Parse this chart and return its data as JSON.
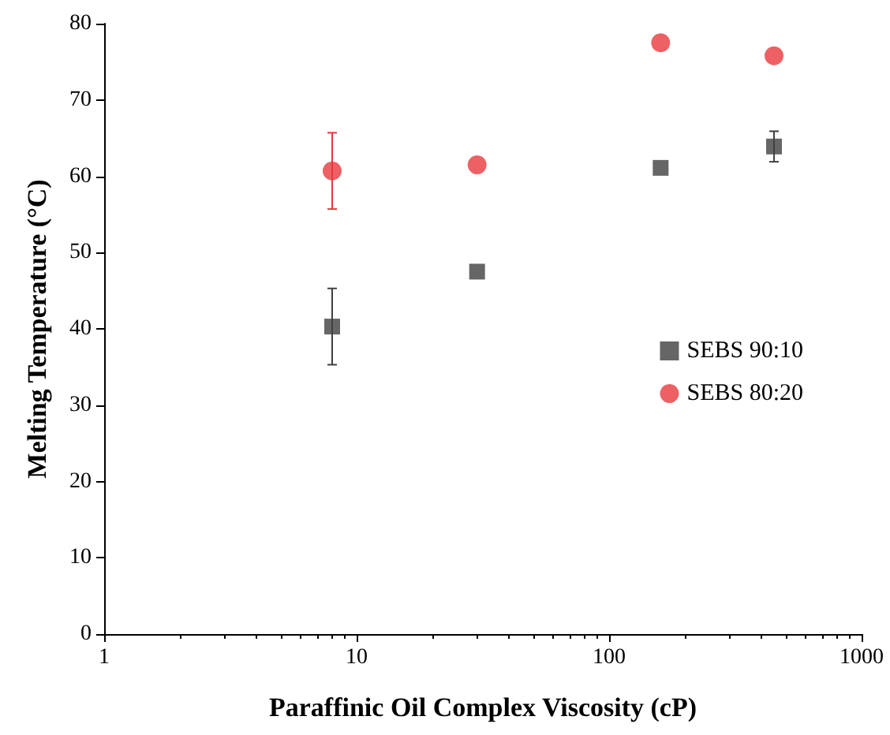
{
  "chart_data": {
    "type": "scatter",
    "xlabel": "Paraffinic Oil Complex Viscosity (cP)",
    "ylabel": "Melting Temperature (°C)",
    "log": "x",
    "xlim": [
      1,
      1000
    ],
    "xticks": [
      1,
      10,
      100,
      1000
    ],
    "ylim": [
      0,
      80
    ],
    "yticks": [
      0,
      10,
      20,
      30,
      40,
      50,
      60,
      70,
      80
    ],
    "grid": false,
    "legend": "right",
    "series": [
      {
        "name": "SEBS 90:10",
        "color": "#404040",
        "marker": "square",
        "x": [
          8,
          30,
          160,
          450
        ],
        "values": [
          40.3,
          47.5,
          61.1,
          63.9
        ],
        "errors": [
          5,
          null,
          null,
          2
        ]
      },
      {
        "name": "SEBS 80:20",
        "color": "#e8383d",
        "marker": "circle",
        "x": [
          8,
          30,
          160,
          450
        ],
        "values": [
          60.7,
          61.5,
          77.5,
          75.8
        ],
        "errors": [
          5,
          null,
          null,
          null
        ]
      }
    ]
  }
}
